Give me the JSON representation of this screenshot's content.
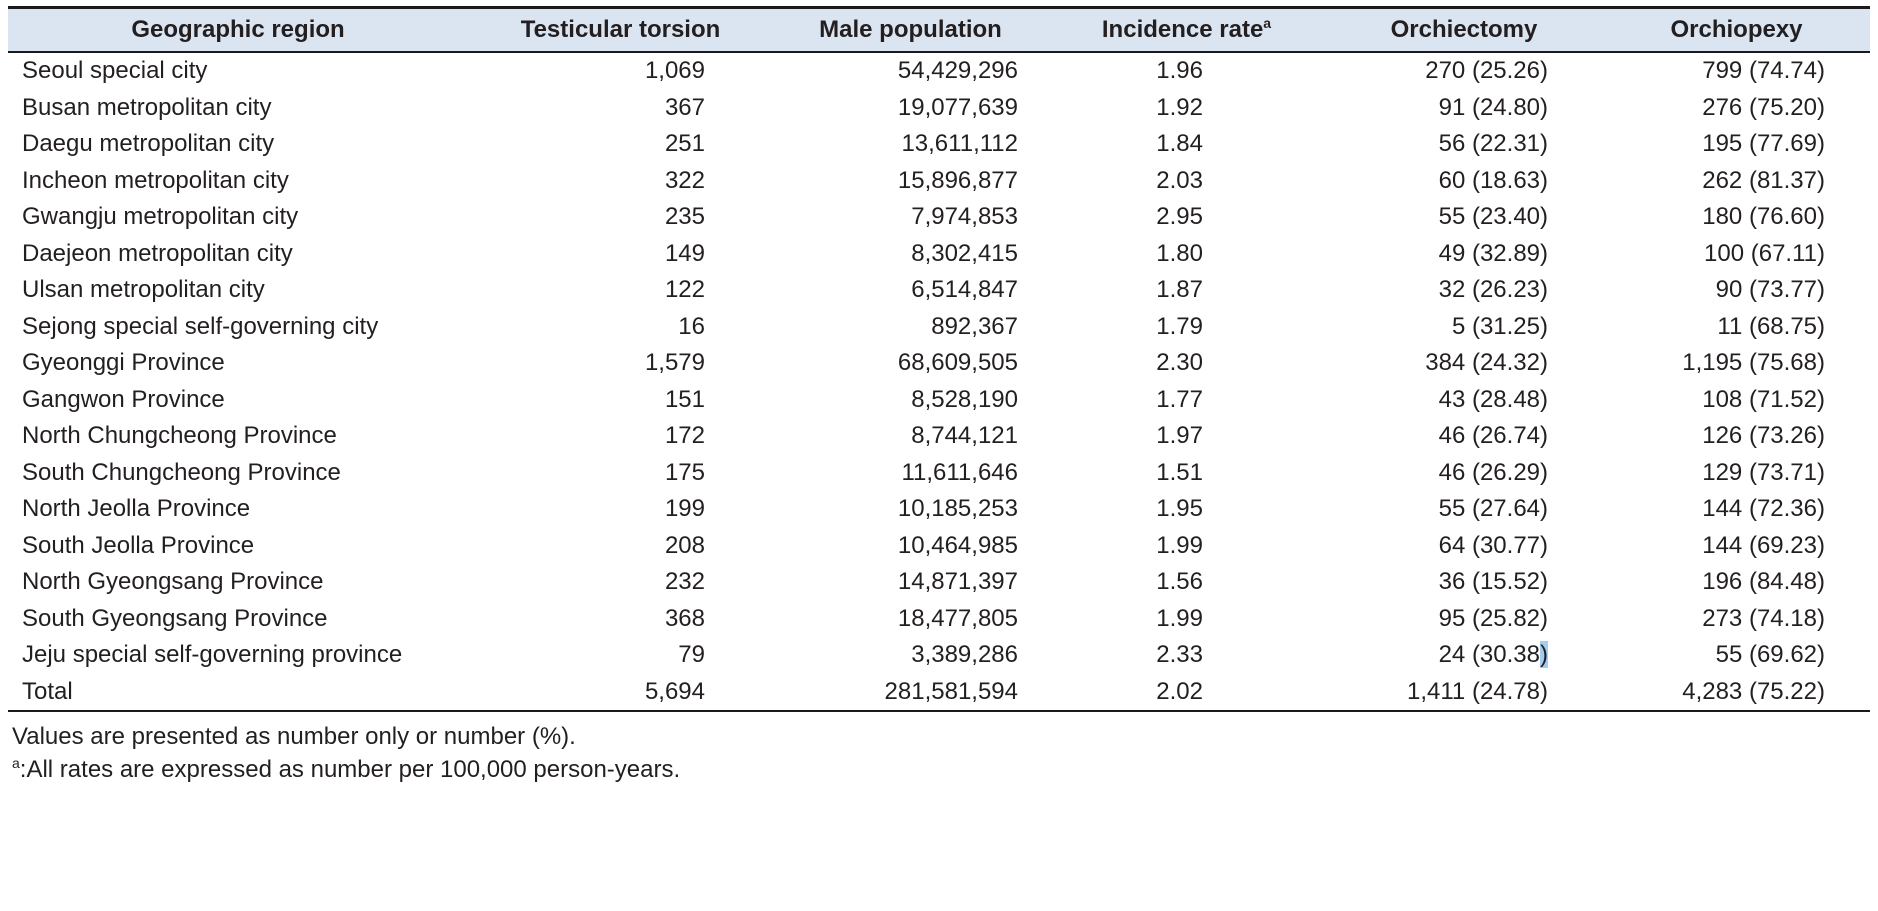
{
  "colors": {
    "header_bg": "#dbe5f1",
    "text": "#231f20",
    "selection_highlight": "#a5cdf0",
    "rule": "#1a1a1a"
  },
  "table": {
    "columns": [
      {
        "label": "Geographic region",
        "sup": ""
      },
      {
        "label": "Testicular torsion",
        "sup": ""
      },
      {
        "label": "Male population",
        "sup": ""
      },
      {
        "label": "Incidence rate",
        "sup": "a"
      },
      {
        "label": "Orchiectomy",
        "sup": ""
      },
      {
        "label": "Orchiopexy",
        "sup": ""
      }
    ],
    "rows": [
      [
        "Seoul special city",
        "1,069",
        "54,429,296",
        "1.96",
        "270 (25.26)",
        "799 (74.74)"
      ],
      [
        "Busan metropolitan city",
        "367",
        "19,077,639",
        "1.92",
        "91 (24.80)",
        "276 (75.20)"
      ],
      [
        "Daegu metropolitan city",
        "251",
        "13,611,112",
        "1.84",
        "56 (22.31)",
        "195 (77.69)"
      ],
      [
        "Incheon metropolitan city",
        "322",
        "15,896,877",
        "2.03",
        "60 (18.63)",
        "262 (81.37)"
      ],
      [
        "Gwangju metropolitan city",
        "235",
        "7,974,853",
        "2.95",
        "55 (23.40)",
        "180 (76.60)"
      ],
      [
        "Daejeon metropolitan city",
        "149",
        "8,302,415",
        "1.80",
        "49 (32.89)",
        "100 (67.11)"
      ],
      [
        "Ulsan metropolitan city",
        "122",
        "6,514,847",
        "1.87",
        "32 (26.23)",
        "90 (73.77)"
      ],
      [
        "Sejong special self-governing city",
        "16",
        "892,367",
        "1.79",
        "5 (31.25)",
        "11 (68.75)"
      ],
      [
        "Gyeonggi Province",
        "1,579",
        "68,609,505",
        "2.30",
        "384 (24.32)",
        "1,195 (75.68)"
      ],
      [
        "Gangwon Province",
        "151",
        "8,528,190",
        "1.77",
        "43 (28.48)",
        "108 (71.52)"
      ],
      [
        "North Chungcheong Province",
        "172",
        "8,744,121",
        "1.97",
        "46 (26.74)",
        "126 (73.26)"
      ],
      [
        "South Chungcheong Province",
        "175",
        "11,611,646",
        "1.51",
        "46 (26.29)",
        "129 (73.71)"
      ],
      [
        "North Jeolla Province",
        "199",
        "10,185,253",
        "1.95",
        "55 (27.64)",
        "144 (72.36)"
      ],
      [
        "South Jeolla Province",
        "208",
        "10,464,985",
        "1.99",
        "64 (30.77)",
        "144 (69.23)"
      ],
      [
        "North Gyeongsang Province",
        "232",
        "14,871,397",
        "1.56",
        "36 (15.52)",
        "196 (84.48)"
      ],
      [
        "South Gyeongsang Province",
        "368",
        "18,477,805",
        "1.99",
        "95 (25.82)",
        "273 (74.18)"
      ],
      [
        "Jeju special self-governing province",
        "79",
        "3,389,286",
        "2.33",
        "24 (30.38)",
        "55 (69.62)"
      ],
      [
        "Total",
        "5,694",
        "281,581,594",
        "2.02",
        "1,411 (24.78)",
        "4,283 (75.22)"
      ]
    ]
  },
  "selection": {
    "row_index": 16,
    "col_index": 4,
    "highlight_char": ")"
  },
  "footnotes": [
    {
      "sup": "",
      "text": "Values are presented as number only or number (%)."
    },
    {
      "sup": "a",
      "text": ":All rates are expressed as number per 100,000 person-years."
    }
  ]
}
